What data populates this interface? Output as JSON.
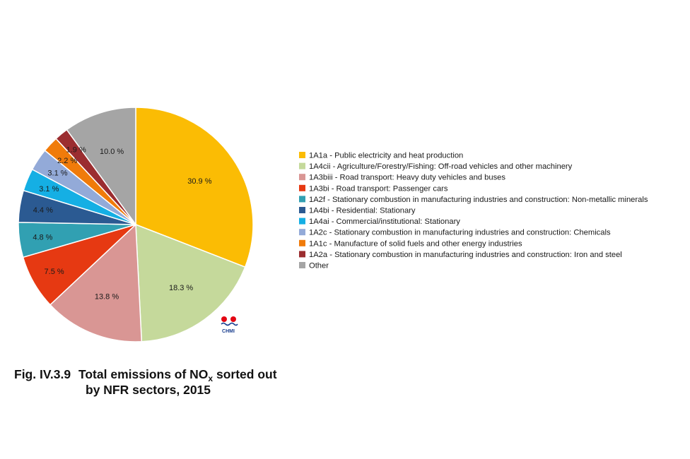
{
  "caption": {
    "figure_number": "Fig. IV.3.9",
    "line1_before_sub": "Total emissions of NO",
    "subscript": "x",
    "line1_after_sub": " sorted out",
    "line2": "by NFR sectors, 2015"
  },
  "logo": {
    "text": "CHMI",
    "colors": {
      "red": "#e30613",
      "blue": "#1a3f8f"
    }
  },
  "chart_data": {
    "type": "pie",
    "start": "12 o'clock",
    "direction": "clockwise",
    "legend_position": "right",
    "slices": [
      {
        "label": "1A1a - Public electricity and heat production",
        "value": 30.9,
        "value_label": "30.9 %",
        "color": "#fbbc04"
      },
      {
        "label": "1A4cii - Agriculture/Forestry/Fishing: Off-road vehicles and other machinery",
        "value": 18.3,
        "value_label": "18.3 %",
        "color": "#c5d99b"
      },
      {
        "label": "1A3biii - Road transport: Heavy duty vehicles and buses",
        "value": 13.8,
        "value_label": "13.8 %",
        "color": "#d99694"
      },
      {
        "label": "1A3bi - Road transport: Passenger cars",
        "value": 7.5,
        "value_label": "7.5 %",
        "color": "#e63912"
      },
      {
        "label": "1A2f - Stationary combustion in manufacturing industries and construction: Non-metallic minerals",
        "value": 4.8,
        "value_label": "4.8 %",
        "color": "#31a0b2"
      },
      {
        "label": "1A4bi - Residential: Stationary",
        "value": 4.4,
        "value_label": "4.4 %",
        "color": "#2b5a92"
      },
      {
        "label": "1A4ai - Commercial/institutional: Stationary",
        "value": 3.1,
        "value_label": "3.1 %",
        "color": "#15afe4"
      },
      {
        "label": "1A2c - Stationary combustion in manufacturing industries and construction: Chemicals",
        "value": 3.1,
        "value_label": "3.1 %",
        "color": "#93aad8"
      },
      {
        "label": "1A1c - Manufacture of solid fuels and other energy industries",
        "value": 2.2,
        "value_label": "2.2 %",
        "color": "#f07b0a"
      },
      {
        "label": "1A2a - Stationary combustion in manufacturing industries and construction: Iron and steel",
        "value": 1.9,
        "value_label": "1.9 %",
        "color": "#9b2d30"
      },
      {
        "label": "Other",
        "value": 10.0,
        "value_label": "10.0 %",
        "color": "#a5a5a5"
      }
    ]
  }
}
